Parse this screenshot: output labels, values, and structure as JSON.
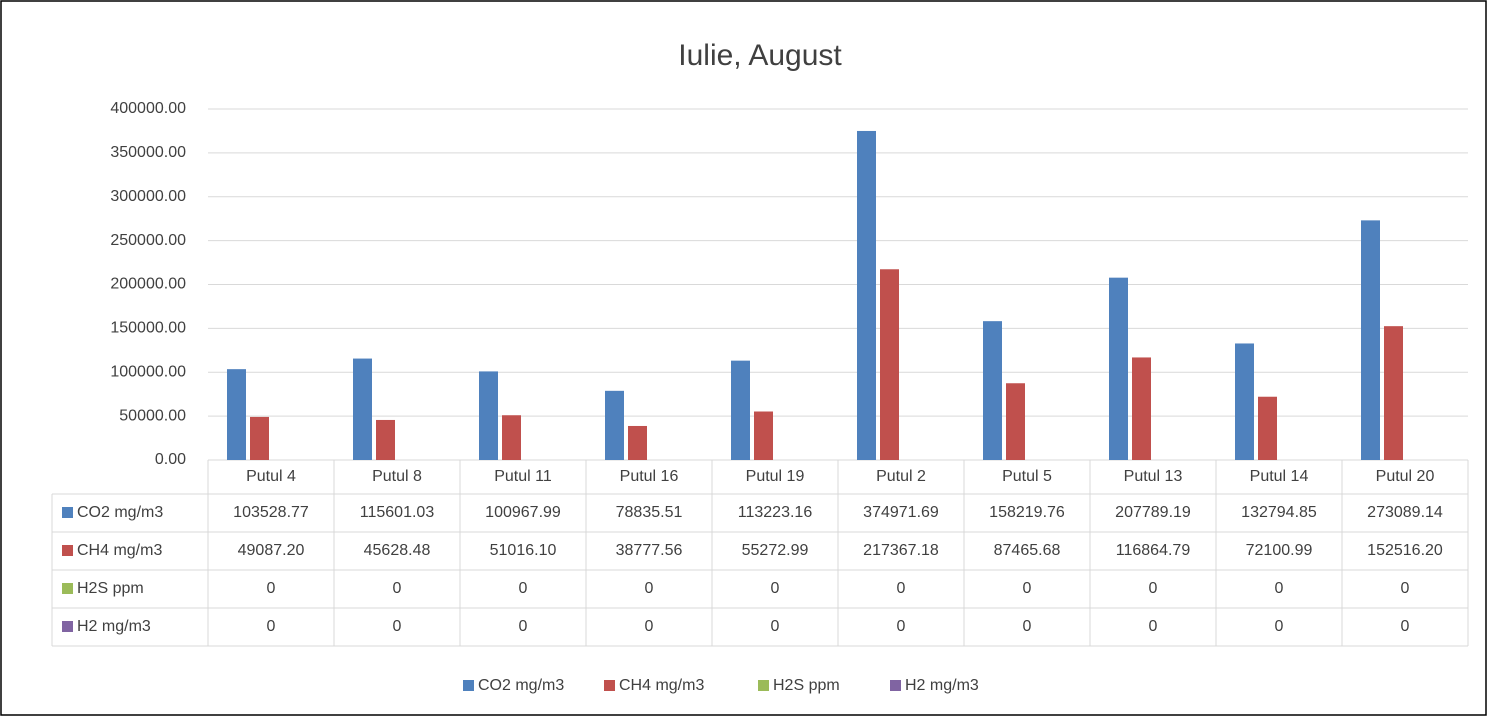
{
  "chart_data": {
    "type": "bar",
    "title": "Iulie, August",
    "categories": [
      "Putul 4",
      "Putul 8",
      "Putul 11",
      "Putul 16",
      "Putul 19",
      "Putul 2",
      "Putul 5",
      "Putul 13",
      "Putul 14",
      "Putul 20"
    ],
    "series": [
      {
        "name": "CO2 mg/m3",
        "color": "#4f81bd",
        "values": [
          103528.77,
          115601.03,
          100967.99,
          78835.51,
          113223.16,
          374971.69,
          158219.76,
          207789.19,
          132794.85,
          273089.14
        ]
      },
      {
        "name": "CH4 mg/m3",
        "color": "#c0504d",
        "values": [
          49087.2,
          45628.48,
          51016.1,
          38777.56,
          55272.99,
          217367.18,
          87465.68,
          116864.79,
          72100.99,
          152516.2
        ],
        "value_labels": [
          "49087.20",
          "45628.48",
          "51016.10",
          "38777.56",
          "55272.99",
          "217367.18",
          "87465.68",
          "116864.79",
          "72100.99",
          "152516.20"
        ]
      },
      {
        "name": "H2S ppm",
        "color": "#9bbb59",
        "values": [
          0,
          0,
          0,
          0,
          0,
          0,
          0,
          0,
          0,
          0
        ]
      },
      {
        "name": "H2 mg/m3",
        "color": "#8064a2",
        "values": [
          0,
          0,
          0,
          0,
          0,
          0,
          0,
          0,
          0,
          0
        ]
      }
    ],
    "ylim": [
      0,
      400000
    ],
    "yticks": [
      {
        "value": 0,
        "label": "0.00"
      },
      {
        "value": 50000,
        "label": "50000.00"
      },
      {
        "value": 100000,
        "label": "100000.00"
      },
      {
        "value": 150000,
        "label": "150000.00"
      },
      {
        "value": 200000,
        "label": "200000.00"
      },
      {
        "value": 250000,
        "label": "250000.00"
      },
      {
        "value": 300000,
        "label": "300000.00"
      },
      {
        "value": 350000,
        "label": "350000.00"
      },
      {
        "value": 400000,
        "label": "400000.00"
      }
    ],
    "grid": true,
    "legend": "bottom"
  }
}
